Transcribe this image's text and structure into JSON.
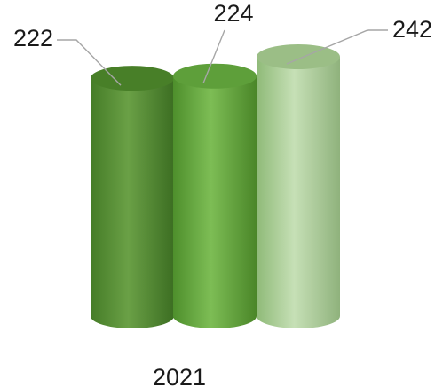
{
  "chart_data": {
    "type": "bar",
    "style": "3d-cylinder",
    "categories": [
      "2021"
    ],
    "series": [
      {
        "values": [
          222
        ],
        "color": "#4e8a2c"
      },
      {
        "values": [
          224
        ],
        "color": "#66ad3f"
      },
      {
        "values": [
          242
        ],
        "color": "#a8cf92"
      }
    ],
    "data_labels": [
      "222",
      "224",
      "242"
    ],
    "title": "",
    "xlabel": "",
    "ylabel": "",
    "ylim": [
      0,
      242
    ],
    "grid": false,
    "legend": "none"
  }
}
